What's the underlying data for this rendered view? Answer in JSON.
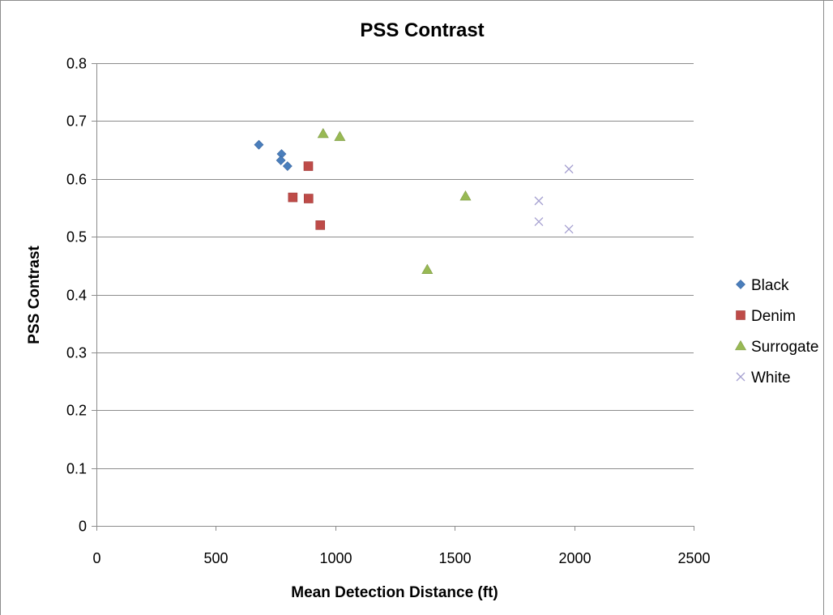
{
  "chart_data": {
    "type": "scatter",
    "title": "PSS  Contrast",
    "xlabel": "Mean Detection Distance (ft)",
    "ylabel": "PSS Contrast",
    "xlim": [
      0,
      2500
    ],
    "ylim": [
      0,
      0.8
    ],
    "x_ticks": [
      0,
      500,
      1000,
      1500,
      2000,
      2500
    ],
    "y_ticks": [
      0,
      0.1,
      0.2,
      0.3,
      0.4,
      0.5,
      0.6,
      0.7,
      0.8
    ],
    "x_tick_labels": [
      "0",
      "500",
      "1000",
      "1500",
      "2000",
      "2500"
    ],
    "y_tick_labels": [
      "0",
      "0.1",
      "0.2",
      "0.3",
      "0.4",
      "0.5",
      "0.6",
      "0.7",
      "0.8"
    ],
    "grid": "horizontal",
    "legend_position": "right",
    "series": [
      {
        "name": "Black",
        "marker": "diamond",
        "color": "#4a7ebb",
        "points": [
          {
            "x": 680,
            "y": 0.659
          },
          {
            "x": 775,
            "y": 0.643
          },
          {
            "x": 772,
            "y": 0.632
          },
          {
            "x": 800,
            "y": 0.622
          }
        ]
      },
      {
        "name": "Denim",
        "marker": "square",
        "color": "#be4b48",
        "points": [
          {
            "x": 887,
            "y": 0.622
          },
          {
            "x": 822,
            "y": 0.568
          },
          {
            "x": 888,
            "y": 0.566
          },
          {
            "x": 937,
            "y": 0.52
          }
        ]
      },
      {
        "name": "Surrogate",
        "marker": "triangle",
        "color": "#98b954",
        "points": [
          {
            "x": 949,
            "y": 0.678
          },
          {
            "x": 1019,
            "y": 0.673
          },
          {
            "x": 1545,
            "y": 0.57
          },
          {
            "x": 1385,
            "y": 0.443
          }
        ]
      },
      {
        "name": "White",
        "marker": "x",
        "color": "#a5a0d0",
        "points": [
          {
            "x": 1978,
            "y": 0.617
          },
          {
            "x": 1852,
            "y": 0.562
          },
          {
            "x": 1852,
            "y": 0.526
          },
          {
            "x": 1978,
            "y": 0.513
          }
        ]
      }
    ]
  }
}
